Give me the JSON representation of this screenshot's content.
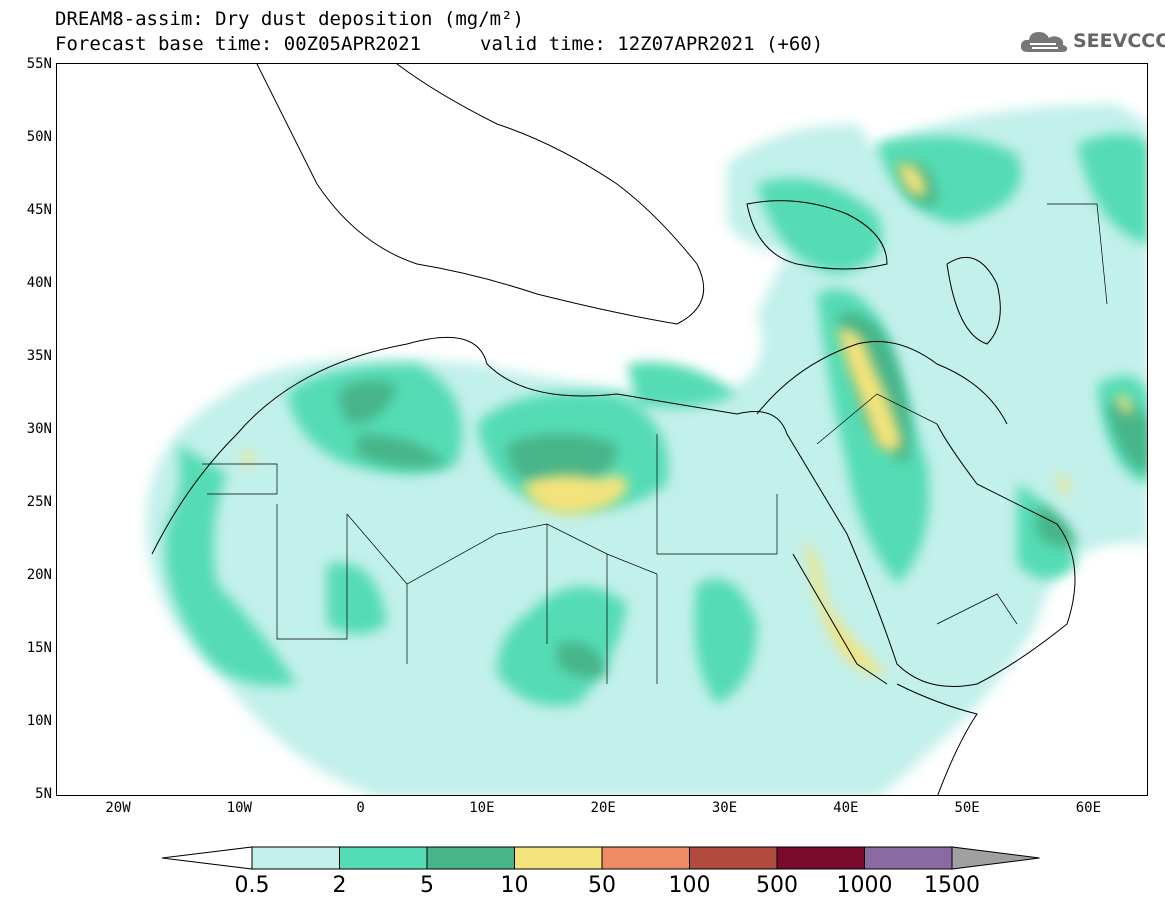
{
  "title": {
    "line1": "DREAM8-assim: Dry dust deposition (mg/m²)",
    "base_time": "Forecast base time: 00Z05APR2021",
    "valid_time": "valid time: 12Z07APR2021 (+60)"
  },
  "logo": {
    "text": "SEEVCCC",
    "icon": "cloud-icon"
  },
  "axes": {
    "lat_labels": [
      "55N",
      "50N",
      "45N",
      "40N",
      "35N",
      "30N",
      "25N",
      "20N",
      "15N",
      "10N",
      "5N"
    ],
    "lon_labels": [
      "20W",
      "10W",
      "0",
      "10E",
      "20E",
      "30E",
      "40E",
      "50E",
      "60E"
    ]
  },
  "colorbar": {
    "labels": [
      "0.5",
      "2",
      "5",
      "10",
      "50",
      "100",
      "500",
      "1000",
      "1500"
    ],
    "colors": [
      "#c2f0ea",
      "#54dcb4",
      "#47b489",
      "#f3e37c",
      "#ec8b65",
      "#b14b3e",
      "#7a0a2c",
      "#8a6aa0",
      "#a0a0a0"
    ]
  },
  "map": {
    "region": "North Africa and Middle East",
    "extent": {
      "lon": [
        -25,
        65
      ],
      "lat": [
        5,
        55
      ]
    }
  }
}
